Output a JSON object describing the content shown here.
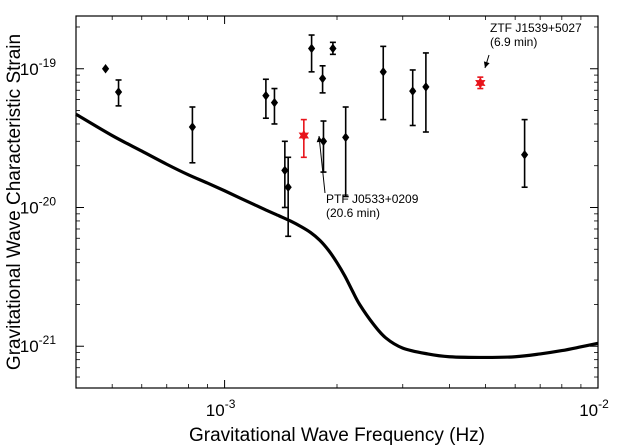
{
  "chart_data": {
    "type": "scatter",
    "title": "",
    "xlabel": "Gravitational Wave Frequency (Hz)",
    "ylabel": "Gravitational Wave Characteristic Strain",
    "x_scale": "log",
    "y_scale": "log",
    "xlim": [
      0.0004,
      0.01
    ],
    "ylim": [
      5e-22,
      2.4e-19
    ],
    "grid": false,
    "legend": "none",
    "x_ticks": [
      {
        "value": 0.001,
        "base": "10",
        "exp": "-3"
      },
      {
        "value": 0.01,
        "base": "10",
        "exp": "-2"
      }
    ],
    "y_ticks": [
      {
        "value": 1e-21,
        "base": "10",
        "exp": "-21"
      },
      {
        "value": 1e-20,
        "base": "10",
        "exp": "-20"
      },
      {
        "value": 1e-19,
        "base": "10",
        "exp": "-19"
      }
    ],
    "series": [
      {
        "kind": "sensitivity_curve",
        "color": "#000000",
        "points": [
          [
            0.0004,
            4.7e-20
          ],
          [
            0.0005,
            3.3e-20
          ],
          [
            0.0006,
            2.55e-20
          ],
          [
            0.0007,
            2.05e-20
          ],
          [
            0.0008,
            1.72e-20
          ],
          [
            0.0009,
            1.5e-20
          ],
          [
            0.001,
            1.32e-20
          ],
          [
            0.0011,
            1.17e-20
          ],
          [
            0.0012,
            1.05e-20
          ],
          [
            0.0013,
            9.5e-21
          ],
          [
            0.0014,
            8.7e-21
          ],
          [
            0.0015,
            8e-21
          ],
          [
            0.0016,
            7.3e-21
          ],
          [
            0.0017,
            6.6e-21
          ],
          [
            0.0018,
            5.8e-21
          ],
          [
            0.0019,
            4.9e-21
          ],
          [
            0.002,
            4e-21
          ],
          [
            0.0021,
            3.2e-21
          ],
          [
            0.0022,
            2.5e-21
          ],
          [
            0.0023,
            2e-21
          ],
          [
            0.0025,
            1.45e-21
          ],
          [
            0.0027,
            1.15e-21
          ],
          [
            0.003,
            9.7e-22
          ],
          [
            0.0035,
            8.8e-22
          ],
          [
            0.004,
            8.4e-22
          ],
          [
            0.005,
            8.3e-22
          ],
          [
            0.006,
            8.4e-22
          ],
          [
            0.007,
            8.8e-22
          ],
          [
            0.008,
            9.3e-22
          ],
          [
            0.009,
            9.9e-22
          ],
          [
            0.01,
            1.05e-21
          ]
        ]
      },
      {
        "kind": "sources",
        "color": "#000000",
        "marker": "diamond",
        "points": [
          {
            "x": 0.00048,
            "y": 1e-19,
            "lo": null,
            "hi": null
          },
          {
            "x": 0.00052,
            "y": 6.8e-20,
            "lo": 5.4e-20,
            "hi": 8.3e-20
          },
          {
            "x": 0.00082,
            "y": 3.8e-20,
            "lo": 2.1e-20,
            "hi": 5.3e-20
          },
          {
            "x": 0.00129,
            "y": 6.4e-20,
            "lo": 4.4e-20,
            "hi": 8.4e-20
          },
          {
            "x": 0.00136,
            "y": 5.7e-20,
            "lo": 4e-20,
            "hi": 7.2e-20
          },
          {
            "x": 0.00145,
            "y": 1.85e-20,
            "lo": 1e-20,
            "hi": 3e-20
          },
          {
            "x": 0.00148,
            "y": 1.4e-20,
            "lo": 6.2e-21,
            "hi": 2.3e-20
          },
          {
            "x": 0.00171,
            "y": 1.4e-19,
            "lo": 9.5e-20,
            "hi": 1.75e-19
          },
          {
            "x": 0.00183,
            "y": 8.5e-20,
            "lo": 6.7e-20,
            "hi": 1.05e-19
          },
          {
            "x": 0.00184,
            "y": 3e-20,
            "lo": 1.8e-20,
            "hi": 4.2e-20
          },
          {
            "x": 0.00195,
            "y": 1.4e-19,
            "lo": 1.27e-19,
            "hi": 1.55e-19
          },
          {
            "x": 0.00211,
            "y": 3.2e-20,
            "lo": 1.2e-20,
            "hi": 5.3e-20
          },
          {
            "x": 0.00266,
            "y": 9.5e-20,
            "lo": 4.3e-20,
            "hi": 1.45e-19
          },
          {
            "x": 0.00319,
            "y": 6.9e-20,
            "lo": 3.9e-20,
            "hi": 9.8e-20
          },
          {
            "x": 0.00346,
            "y": 7.4e-20,
            "lo": 3.5e-20,
            "hi": 1.3e-19
          },
          {
            "x": 0.00636,
            "y": 2.4e-20,
            "lo": 1.4e-20,
            "hi": 4.3e-20
          }
        ]
      },
      {
        "kind": "highlighted",
        "color": "#e8141b",
        "marker": "star",
        "points": [
          {
            "x": 0.00163,
            "y": 3.3e-20,
            "lo": 2.3e-20,
            "hi": 4.3e-20
          },
          {
            "x": 0.00484,
            "y": 7.9e-20,
            "lo": 7.2e-20,
            "hi": 8.7e-20
          }
        ]
      }
    ],
    "annotations": [
      {
        "lines": [
          "ZTF J1539+5027",
          "(6.9 min)"
        ],
        "target": [
          0.00484,
          7.9e-20
        ]
      },
      {
        "lines": [
          "PTF J0533+0209",
          "(20.6 min)"
        ],
        "target": [
          0.00163,
          3.3e-20
        ]
      }
    ]
  }
}
